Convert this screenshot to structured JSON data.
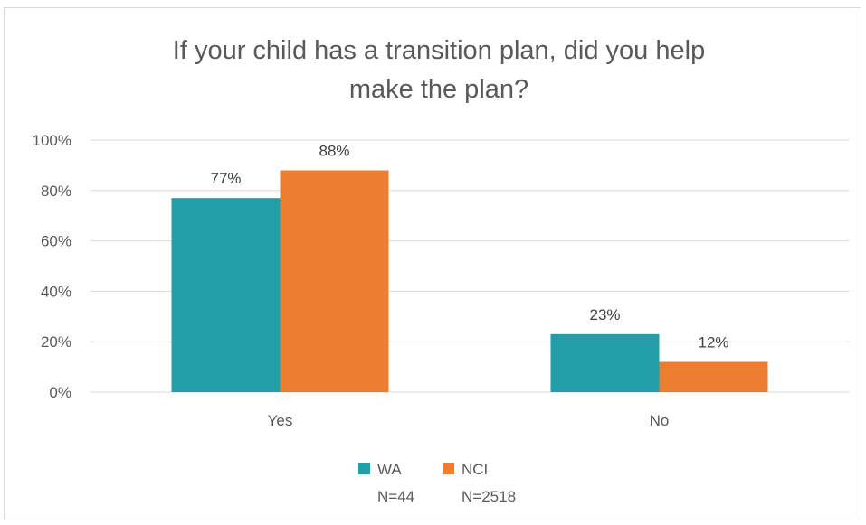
{
  "chart_data": {
    "type": "bar",
    "title_lines": [
      "If your child has a transition plan, did you help",
      "make the plan?"
    ],
    "categories": [
      "Yes",
      "No"
    ],
    "series": [
      {
        "name": "WA",
        "sample": "N=44",
        "values": [
          77,
          23
        ],
        "labels": [
          "77%",
          "23%"
        ],
        "color": "#229EA8"
      },
      {
        "name": "NCI",
        "sample": "N=2518",
        "values": [
          88,
          12
        ],
        "labels": [
          "88%",
          "12%"
        ],
        "color": "#ED7D31"
      }
    ],
    "ylim": [
      0,
      100
    ],
    "yticks": [
      0,
      20,
      40,
      60,
      80,
      100
    ],
    "ytick_labels": [
      "0%",
      "20%",
      "40%",
      "60%",
      "80%",
      "100%"
    ],
    "grid": true,
    "legend_position": "bottom"
  }
}
